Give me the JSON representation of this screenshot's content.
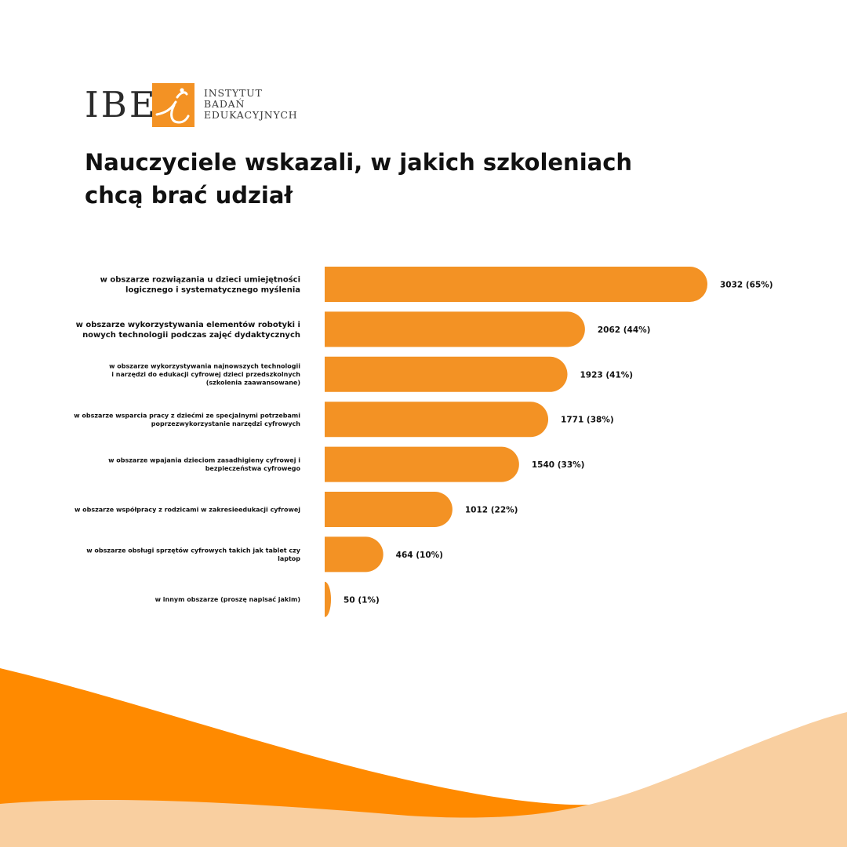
{
  "logo": {
    "abbr": "IBE",
    "lines": [
      "INSTYTUT",
      "BADAŃ",
      "EDUKACYJNYCH"
    ]
  },
  "title": "Nauczyciele wskazali, w jakich szkoleniach chcą brać udział",
  "colors": {
    "bar": "#f39224",
    "wave_dark": "#ff8a00",
    "wave_light": "#f9cfa0",
    "text": "#111111"
  },
  "chart_data": {
    "type": "bar",
    "orientation": "horizontal",
    "categories": [
      [
        "w obszarze rozwiązania u dzieci umiejętności",
        "logicznego i systematycznego myślenia"
      ],
      [
        "w obszarze wykorzystywania elementów robotyki i",
        "nowych technologii podczas zajęć dydaktycznych"
      ],
      [
        "w obszarze wykorzystywania najnowszych technologii",
        "i narzędzi do edukacji cyfrowej dzieci przedszkolnych",
        "(szkolenia zaawansowane)"
      ],
      [
        "w obszarze wsparcia pracy z dziećmi ze specjalnymi potrzebami",
        "poprzezwykorzystanie narzędzi cyfrowych"
      ],
      [
        "w obszarze wpajania dzieciom zasadhigieny cyfrowej i",
        "bezpieczeństwa cyfrowego"
      ],
      [
        "w obszarze współpracy z rodzicami w zakresieedukacji cyfrowej"
      ],
      [
        "w obszarze obsługi sprzętów cyfrowych takich jak tablet czy",
        "laptop"
      ],
      [
        "w innym obszarze (proszę napisać jakim)"
      ]
    ],
    "values": [
      3032,
      2062,
      1923,
      1771,
      1540,
      1012,
      464,
      50
    ],
    "data_labels": [
      "3032 (65%)",
      "2062 (44%)",
      "1923 (41%)",
      "1771 (38%)",
      "1540 (33%)",
      "1012 (22%)",
      "464 (10%)",
      "50 (1%)"
    ],
    "xlim": [
      0,
      3032
    ],
    "grid": false,
    "legend": "none"
  }
}
